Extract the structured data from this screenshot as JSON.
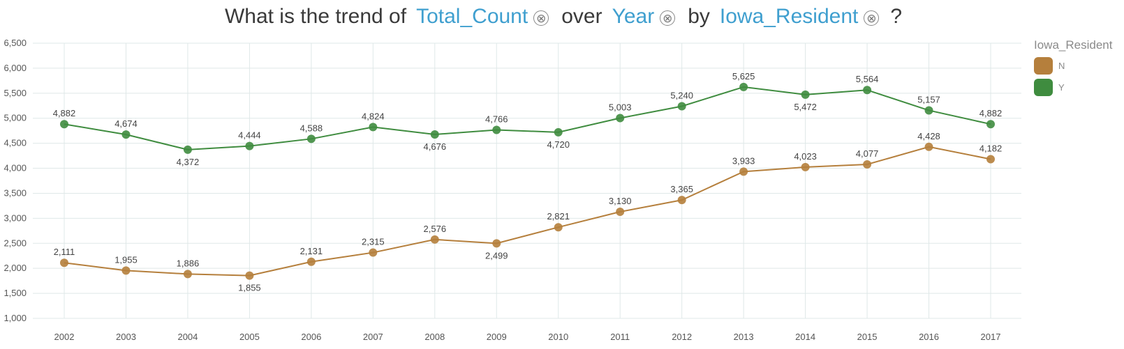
{
  "title": {
    "text_1": "What is the trend of",
    "field_1": "Total_Count",
    "text_2": "over",
    "field_2": "Year",
    "text_3": "by",
    "field_3": "Iowa_Resident",
    "question_mark": "?",
    "close_glyph": "⊗"
  },
  "legend": {
    "title": "Iowa_Resident",
    "items": [
      {
        "label": "N",
        "color": "#b57f3c"
      },
      {
        "label": "Y",
        "color": "#3f8c3f"
      }
    ]
  },
  "chart_data": {
    "type": "line",
    "title": "What is the trend of Total_Count over Year by Iowa_Resident ?",
    "xlabel": "Year",
    "ylabel": "Total_Count",
    "categories": [
      "2002",
      "2003",
      "2004",
      "2005",
      "2006",
      "2007",
      "2008",
      "2009",
      "2010",
      "2011",
      "2012",
      "2013",
      "2014",
      "2015",
      "2016",
      "2017"
    ],
    "ylim": [
      1000,
      6500
    ],
    "yticks": [
      1000,
      1500,
      2000,
      2500,
      3000,
      3500,
      4000,
      4500,
      5000,
      5500,
      6000,
      6500
    ],
    "ytick_labels": [
      "1,000",
      "1,500",
      "2,000",
      "2,500",
      "3,000",
      "3,500",
      "4,000",
      "4,500",
      "5,000",
      "5,500",
      "6,000",
      "6,500"
    ],
    "grid": true,
    "legend_position": "right",
    "series": [
      {
        "name": "N",
        "color": "#b57f3c",
        "values": [
          2111,
          1955,
          1886,
          1855,
          2131,
          2315,
          2576,
          2499,
          2821,
          3130,
          3365,
          3933,
          4023,
          4077,
          4428,
          4182
        ],
        "labels": [
          "2,111",
          "1,955",
          "1,886",
          "1,855",
          "2,131",
          "2,315",
          "2,576",
          "2,499",
          "2,821",
          "3,130",
          "3,365",
          "3,933",
          "4,023",
          "4,077",
          "4,428",
          "4,182"
        ]
      },
      {
        "name": "Y",
        "color": "#3f8c3f",
        "values": [
          4882,
          4674,
          4372,
          4444,
          4588,
          4824,
          4676,
          4766,
          4720,
          5003,
          5240,
          5625,
          5472,
          5564,
          5157,
          4882
        ],
        "labels": [
          "4,882",
          "4,674",
          "4,372",
          "4,444",
          "4,588",
          "4,824",
          "4,676",
          "4,766",
          "4,720",
          "5,003",
          "5,240",
          "5,625",
          "5,472",
          "5,564",
          "5,157",
          "4,882"
        ]
      }
    ]
  }
}
